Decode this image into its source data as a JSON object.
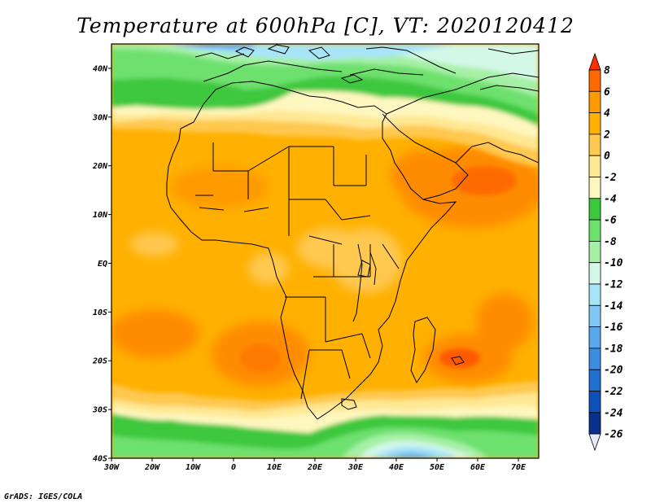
{
  "title": "Temperature at 600hPa [C], VT: 2020120412",
  "credit": "GrADS: IGES/COLA",
  "map": {
    "x_tick_labels": [
      "30W",
      "20W",
      "10W",
      "0",
      "10E",
      "20E",
      "30E",
      "40E",
      "50E",
      "60E",
      "70E"
    ],
    "y_tick_labels": [
      "40N",
      "30N",
      "20N",
      "10N",
      "EQ",
      "10S",
      "20S",
      "30S",
      "40S"
    ],
    "lon_range": [
      -30,
      75
    ],
    "lat_range": [
      -40,
      45
    ]
  },
  "colorbar": {
    "labels": [
      "8",
      "6",
      "4",
      "2",
      "0",
      "-2",
      "-4",
      "-6",
      "-8",
      "-10",
      "-12",
      "-14",
      "-16",
      "-18",
      "-20",
      "-22",
      "-24",
      "-26"
    ],
    "colors": [
      "#ff3000",
      "#ff6a00",
      "#ff9a00",
      "#ffb000",
      "#ffc850",
      "#ffe894",
      "#fff7c0",
      "#3cc83c",
      "#6ee06e",
      "#a6f0a6",
      "#d4f8e8",
      "#a8e4f8",
      "#82c8f4",
      "#5aa8ec",
      "#3c8ce0",
      "#2070d0",
      "#0c50b8",
      "#08308c",
      "#e8e8ff"
    ]
  }
}
